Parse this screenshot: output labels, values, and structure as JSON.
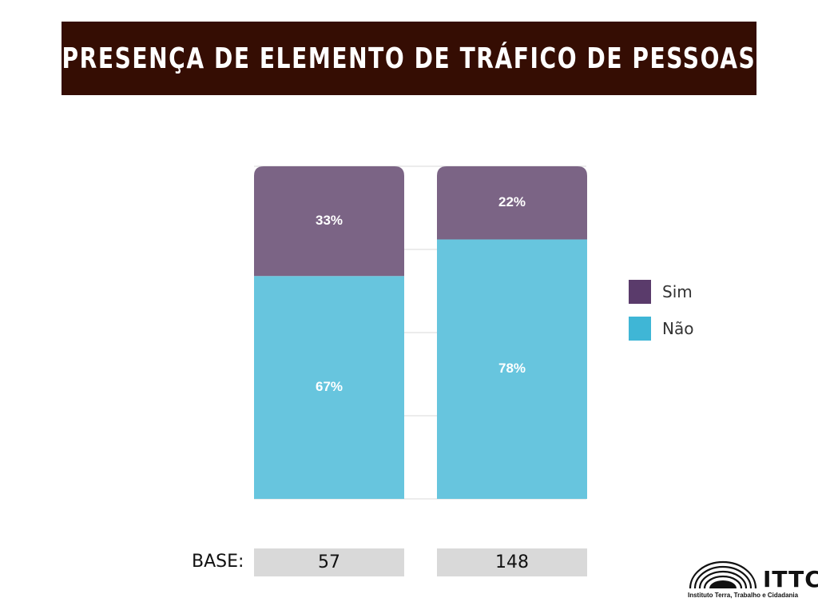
{
  "title": "PRESENÇA DE ELEMENTO DE TRÁFICO DE PESSOAS",
  "colors": {
    "banner": "#350d03",
    "sim": "#7b6485",
    "nao": "#67c5de",
    "legend_sim": "#5a3b6b",
    "legend_nao": "#3fb6d6",
    "grid": "#d9d9d9",
    "base_box": "#d9d9d9"
  },
  "legend": {
    "items": [
      {
        "label": "Sim",
        "color": "#5a3b6b"
      },
      {
        "label": "Não",
        "color": "#3fb6d6"
      }
    ]
  },
  "base": {
    "label": "BASE:",
    "values": [
      "57",
      "148"
    ]
  },
  "logo": {
    "name": "ITTC",
    "subtitle": "Instituto Terra, Trabalho e Cidadania"
  },
  "chart_data": {
    "type": "bar",
    "stacked": true,
    "categories": [
      "",
      ""
    ],
    "series": [
      {
        "name": "Não",
        "values": [
          67,
          78
        ],
        "labels": [
          "67%",
          "78%"
        ]
      },
      {
        "name": "Sim",
        "values": [
          33,
          22
        ],
        "labels": [
          "33%",
          "22%"
        ]
      }
    ],
    "ylim": [
      0,
      100
    ],
    "grid": true,
    "legend_position": "right"
  }
}
